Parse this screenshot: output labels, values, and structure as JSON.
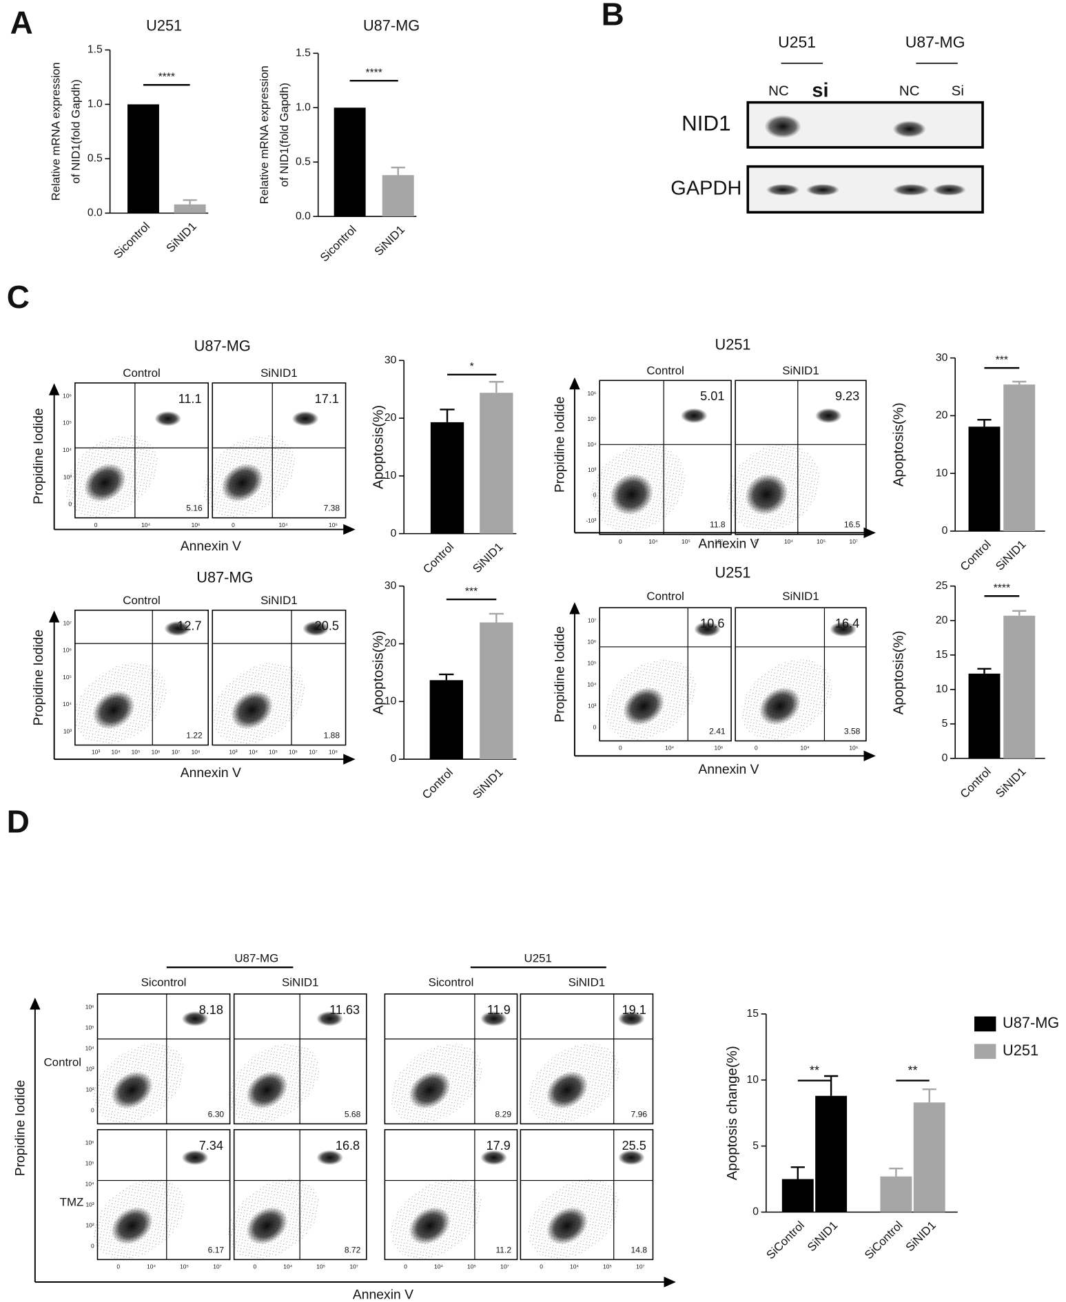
{
  "panel_labels": [
    "A",
    "B",
    "C",
    "D"
  ],
  "chart_data": [
    {
      "type": "bar",
      "title": "U251",
      "ylabel": [
        "Relative mRNA expression",
        "of NID1(fold Gapdh)"
      ],
      "categories": [
        "Sicontrol",
        "SiNID1"
      ],
      "values": [
        1.0,
        0.08
      ],
      "errors": [
        0,
        0.04
      ],
      "colors": [
        "#000000",
        "#a6a6a6"
      ],
      "ylim": [
        0,
        1.5
      ],
      "yticks": [
        {
          "value": 0,
          "label": "0.0"
        },
        {
          "value": 0.5,
          "label": "0.5"
        },
        {
          "value": 1,
          "label": "1.0"
        },
        {
          "value": 1.5,
          "label": "1.5"
        }
      ],
      "significance": "****"
    },
    {
      "type": "bar",
      "title": "U87-MG",
      "ylabel": [
        "Relative mRNA expression",
        "of NID1(fold Gapdh)"
      ],
      "categories": [
        "Sicontrol",
        "SiNID1"
      ],
      "values": [
        1.0,
        0.38
      ],
      "errors": [
        0,
        0.07
      ],
      "colors": [
        "#000000",
        "#a6a6a6"
      ],
      "ylim": [
        0,
        1.5
      ],
      "yticks": [
        {
          "value": 0,
          "label": "0.0"
        },
        {
          "value": 0.5,
          "label": "0.5"
        },
        {
          "value": 1,
          "label": "1.0"
        },
        {
          "value": 1.5,
          "label": "1.5"
        }
      ],
      "significance": "****"
    },
    {
      "type": "bar",
      "ylabel": "Apoptosis(%)",
      "categories": [
        "Control",
        "SiNID1"
      ],
      "values": [
        19.3,
        24.4
      ],
      "errors": [
        2.2,
        1.9
      ],
      "colors": [
        "#000000",
        "#a6a6a6"
      ],
      "ylim": [
        0,
        30
      ],
      "yticks": [
        0,
        10,
        20,
        30
      ],
      "significance": "*"
    },
    {
      "type": "bar",
      "ylabel": "Apoptosis(%)",
      "categories": [
        "Control",
        "SiNID1"
      ],
      "values": [
        18.1,
        25.4
      ],
      "errors": [
        1.2,
        0.5
      ],
      "colors": [
        "#000000",
        "#a6a6a6"
      ],
      "ylim": [
        0,
        30
      ],
      "yticks": [
        0,
        10,
        20,
        30
      ],
      "significance": "***"
    },
    {
      "type": "bar",
      "ylabel": "Apoptosis(%)",
      "categories": [
        "Control",
        "SiNID1"
      ],
      "values": [
        13.7,
        23.7
      ],
      "errors": [
        1.0,
        1.5
      ],
      "colors": [
        "#000000",
        "#a6a6a6"
      ],
      "ylim": [
        0,
        30
      ],
      "yticks": [
        0,
        10,
        20,
        30
      ],
      "significance": "***"
    },
    {
      "type": "bar",
      "ylabel": "Apoptosis(%)",
      "categories": [
        "Control",
        "SiNID1"
      ],
      "values": [
        12.3,
        20.7
      ],
      "errors": [
        0.7,
        0.7
      ],
      "colors": [
        "#000000",
        "#a6a6a6"
      ],
      "ylim": [
        0,
        25
      ],
      "yticks": [
        0,
        5,
        10,
        15,
        20,
        25
      ],
      "significance": "****"
    },
    {
      "type": "grouped_bar",
      "ylabel": "Apoptosis change(%)",
      "categories": [
        "SiControl",
        "SiNID1"
      ],
      "series": [
        {
          "name": "U87-MG",
          "color": "#000000",
          "values": [
            2.5,
            8.8
          ],
          "errors": [
            0.9,
            1.5
          ]
        },
        {
          "name": "U251",
          "color": "#a6a6a6",
          "values": [
            2.7,
            8.3
          ],
          "errors": [
            0.6,
            1.0
          ]
        }
      ],
      "ylim": [
        0,
        15
      ],
      "yticks": [
        0,
        5,
        10,
        15
      ],
      "significance": [
        "**",
        "**"
      ]
    }
  ],
  "blot": {
    "cell_lines": [
      "U251",
      "U87-MG"
    ],
    "lanes": [
      "NC",
      "si",
      "NC",
      "Si"
    ],
    "proteins": [
      "NID1",
      "GAPDH"
    ]
  },
  "flow": [
    {
      "title": "U87-MG",
      "columns": [
        "Control",
        "SiNID1"
      ],
      "upper_right": [
        "11.1",
        "17.1"
      ],
      "lower_right": [
        "5.16",
        "7.38"
      ],
      "xlabel": "Annexin V",
      "ylabel": "Propidine Iodide",
      "xtick_labels": [
        "0",
        "10⁴",
        "10⁶"
      ],
      "ytick_labels": [
        "10⁶",
        "10⁵",
        "10⁴",
        "10³",
        "0"
      ]
    },
    {
      "title": "U251",
      "columns": [
        "Control",
        "SiNID1"
      ],
      "upper_right": [
        "5.01",
        "9.23"
      ],
      "lower_right": [
        "11.8",
        "16.5"
      ],
      "xlabel": "Annexin V",
      "ylabel": "Propidine Iodide",
      "xtick_labels": [
        "0",
        "10⁴",
        "10⁵",
        "10⁷"
      ],
      "ytick_labels": [
        "10⁶",
        "10⁵",
        "10⁴",
        "10³",
        "0",
        "-10³"
      ]
    },
    {
      "title": "U87-MG",
      "columns": [
        "Control",
        "SiNID1"
      ],
      "upper_right": [
        "12.7",
        "20.5"
      ],
      "lower_right": [
        "1.22",
        "1.88"
      ],
      "xlabel": "Annexin V",
      "ylabel": "Propidine Iodide",
      "xtick_labels": [
        "10³",
        "10⁴",
        "10⁵",
        "10⁶",
        "10⁷",
        "10⁸"
      ],
      "ytick_labels": [
        "10⁷",
        "10⁶",
        "10⁵",
        "10⁴",
        "10³"
      ]
    },
    {
      "title": "U251",
      "columns": [
        "Control",
        "SiNID1"
      ],
      "upper_right": [
        "10.6",
        "16.4"
      ],
      "lower_right": [
        "2.41",
        "3.58"
      ],
      "xlabel": "Annexin V",
      "ylabel": "Propidine Iodide",
      "xtick_labels": [
        "0",
        "10⁴",
        "10⁶"
      ],
      "ytick_labels": [
        "10⁷",
        "10⁶",
        "10⁵",
        "10⁴",
        "10³",
        "0"
      ]
    },
    {
      "headers": [
        "U87-MG",
        "U251"
      ],
      "columns": [
        "Sicontrol",
        "SiNID1",
        "Sicontrol",
        "SiNID1"
      ],
      "rows": [
        "Control",
        "TMZ"
      ],
      "upper_right": [
        "8.18",
        "11.63",
        "11.9",
        "19.1",
        "7.34",
        "16.8",
        "17.9",
        "25.5"
      ],
      "lower_right": [
        "6.30",
        "5.68",
        "8.29",
        "7.96",
        "6.17",
        "8.72",
        "11.2",
        "14.8"
      ],
      "xlabel": "Annexin V",
      "ylabel": "Propidine Iodide",
      "xtick_labels": [
        "0",
        "10⁴",
        "10⁵",
        "10⁷"
      ],
      "ytick_labels": [
        "10⁶",
        "10⁵",
        "10⁴",
        "10³",
        "10²",
        "0"
      ]
    }
  ]
}
